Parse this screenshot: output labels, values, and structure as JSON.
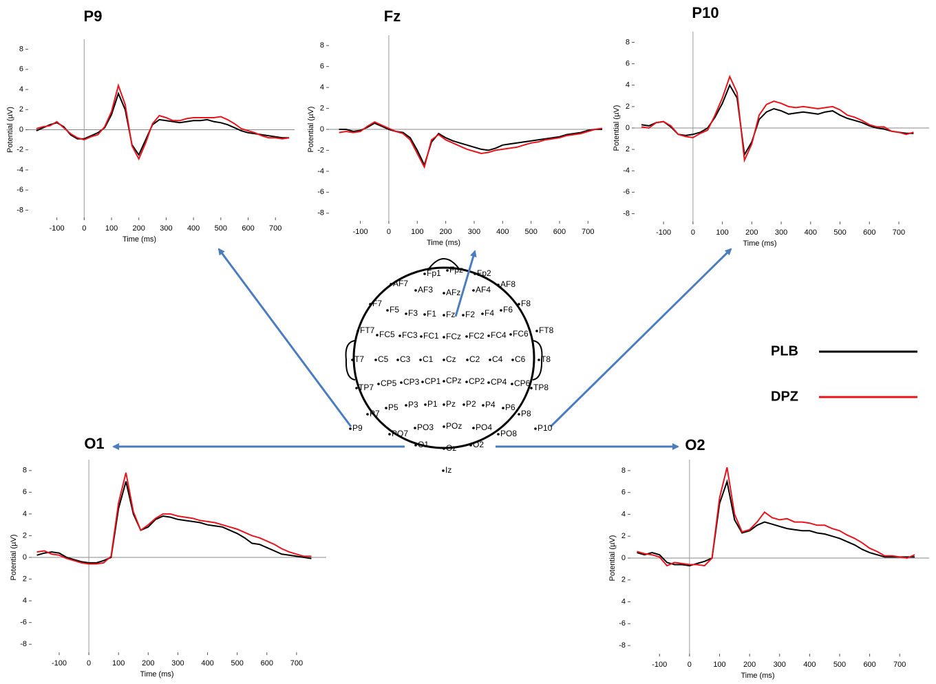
{
  "chart_data": [
    {
      "type": "line",
      "title": "P9",
      "x_label": "Time (ms)",
      "y_label": "Potential (µV)",
      "xlim": [
        -215,
        770
      ],
      "ylim": [
        -9,
        9
      ],
      "xticks": [
        -100,
        0,
        100,
        200,
        300,
        400,
        500,
        600,
        700
      ],
      "yticks": [
        8,
        6,
        4,
        2,
        0,
        -2,
        -4,
        -6,
        -8
      ],
      "x": [
        -175,
        -150,
        -125,
        -100,
        -75,
        -50,
        -25,
        0,
        25,
        50,
        75,
        100,
        125,
        150,
        175,
        200,
        225,
        250,
        275,
        300,
        325,
        350,
        375,
        400,
        425,
        450,
        475,
        500,
        525,
        550,
        575,
        600,
        625,
        650,
        675,
        700,
        725,
        750
      ],
      "series": [
        {
          "name": "PLB",
          "color": "#000000",
          "values": [
            -0.1,
            0.2,
            0.5,
            0.7,
            0.3,
            -0.5,
            -0.9,
            -0.9,
            -0.6,
            -0.3,
            0.2,
            1.5,
            3.6,
            2.0,
            -1.5,
            -2.5,
            -1.0,
            0.5,
            1.0,
            0.9,
            0.8,
            0.7,
            0.8,
            0.9,
            0.9,
            1.0,
            0.8,
            0.7,
            0.5,
            0.2,
            -0.1,
            -0.3,
            -0.4,
            -0.5,
            -0.6,
            -0.7,
            -0.8,
            -0.8
          ]
        },
        {
          "name": "DPZ",
          "color": "#e8141c",
          "values": [
            0.1,
            0.3,
            0.4,
            0.8,
            0.2,
            -0.4,
            -0.8,
            -1.0,
            -0.7,
            -0.5,
            0.3,
            1.8,
            4.4,
            2.5,
            -1.6,
            -2.9,
            -1.3,
            0.6,
            1.4,
            1.2,
            0.9,
            0.9,
            1.1,
            1.2,
            1.2,
            1.2,
            1.2,
            1.3,
            1.0,
            0.6,
            0.1,
            -0.1,
            -0.3,
            -0.6,
            -0.8,
            -0.8,
            -0.9,
            -0.8
          ]
        }
      ]
    },
    {
      "type": "line",
      "title": "Fz",
      "x_label": "Time (ms)",
      "y_label": "Potential (µV)",
      "xlim": [
        -220,
        750
      ],
      "ylim": [
        -9,
        9
      ],
      "xticks": [
        -100,
        0,
        100,
        200,
        300,
        400,
        500,
        600,
        700
      ],
      "yticks": [
        8,
        6,
        4,
        2,
        0,
        -2,
        -4,
        -6,
        -8
      ],
      "x": [
        -175,
        -150,
        -125,
        -100,
        -75,
        -50,
        -25,
        0,
        25,
        50,
        75,
        100,
        125,
        150,
        175,
        200,
        225,
        250,
        275,
        300,
        325,
        350,
        375,
        400,
        425,
        450,
        475,
        500,
        525,
        550,
        575,
        600,
        625,
        650,
        675,
        700,
        725,
        750
      ],
      "series": [
        {
          "name": "PLB",
          "color": "#000000",
          "values": [
            0.0,
            0.0,
            -0.2,
            -0.1,
            0.2,
            0.6,
            0.3,
            0.0,
            -0.2,
            -0.3,
            -0.8,
            -2.0,
            -3.4,
            -1.2,
            -0.4,
            -0.8,
            -1.1,
            -1.3,
            -1.5,
            -1.7,
            -1.9,
            -2.0,
            -1.8,
            -1.5,
            -1.4,
            -1.3,
            -1.2,
            -1.1,
            -1.0,
            -0.9,
            -0.8,
            -0.7,
            -0.5,
            -0.4,
            -0.3,
            -0.1,
            0.0,
            0.0
          ]
        },
        {
          "name": "DPZ",
          "color": "#e8141c",
          "values": [
            -0.3,
            -0.2,
            -0.3,
            -0.2,
            0.3,
            0.7,
            0.4,
            0.1,
            -0.2,
            -0.4,
            -1.0,
            -2.3,
            -3.6,
            -1.0,
            -0.5,
            -1.0,
            -1.3,
            -1.6,
            -1.9,
            -2.1,
            -2.3,
            -2.2,
            -2.0,
            -1.9,
            -1.8,
            -1.7,
            -1.5,
            -1.3,
            -1.2,
            -1.0,
            -0.9,
            -0.8,
            -0.6,
            -0.5,
            -0.4,
            -0.2,
            0.0,
            0.1
          ]
        }
      ]
    },
    {
      "type": "line",
      "title": "P10",
      "x_label": "Time (ms)",
      "y_label": "Potential (µV)",
      "xlim": [
        -208,
        803
      ],
      "ylim": [
        -9,
        9
      ],
      "xticks": [
        -100,
        0,
        100,
        200,
        300,
        400,
        500,
        600,
        700
      ],
      "yticks": [
        8,
        6,
        4,
        2,
        0,
        {
          "value": -2,
          "label": "2"
        },
        -4,
        -6,
        -8
      ],
      "x": [
        -175,
        -150,
        -125,
        -100,
        -75,
        -50,
        -25,
        0,
        25,
        50,
        75,
        100,
        125,
        150,
        175,
        200,
        225,
        250,
        275,
        300,
        325,
        350,
        375,
        400,
        425,
        450,
        475,
        500,
        525,
        550,
        575,
        600,
        625,
        650,
        675,
        700,
        725,
        750
      ],
      "series": [
        {
          "name": "PLB",
          "color": "#000000",
          "values": [
            0.3,
            0.2,
            0.5,
            0.6,
            0.1,
            -0.6,
            -0.7,
            -0.6,
            -0.4,
            0.0,
            1.0,
            2.3,
            4.0,
            2.8,
            -2.5,
            -1.3,
            0.8,
            1.5,
            1.8,
            1.6,
            1.3,
            1.4,
            1.5,
            1.4,
            1.3,
            1.5,
            1.6,
            1.2,
            0.9,
            0.7,
            0.5,
            0.2,
            0.0,
            -0.1,
            -0.3,
            -0.4,
            -0.5,
            -0.5
          ]
        },
        {
          "name": "DPZ",
          "color": "#e8141c",
          "values": [
            0.1,
            0.0,
            0.5,
            0.6,
            0.2,
            -0.6,
            -0.8,
            -0.9,
            -0.5,
            -0.2,
            1.2,
            2.8,
            4.8,
            3.3,
            -3.0,
            -1.5,
            1.2,
            2.2,
            2.5,
            2.3,
            2.0,
            1.9,
            2.0,
            1.9,
            1.8,
            1.9,
            2.0,
            1.7,
            1.2,
            1.0,
            0.7,
            0.3,
            0.1,
            0.1,
            -0.3,
            -0.4,
            -0.6,
            -0.4
          ]
        }
      ]
    },
    {
      "type": "line",
      "title": "O1",
      "x_label": "Time (ms)",
      "y_label": "Potential (µV)",
      "xlim": [
        -202,
        800
      ],
      "ylim": [
        -9,
        9
      ],
      "xticks": [
        -100,
        0,
        100,
        200,
        300,
        400,
        500,
        600,
        700
      ],
      "yticks": [
        8,
        6,
        4,
        2,
        0,
        {
          "value": -2,
          "label": "2"
        },
        {
          "value": -4,
          "label": "4"
        },
        -6,
        -8
      ],
      "x": [
        -175,
        -150,
        -125,
        -100,
        -75,
        -50,
        -25,
        0,
        25,
        50,
        75,
        100,
        125,
        150,
        175,
        200,
        225,
        250,
        275,
        300,
        325,
        350,
        375,
        400,
        425,
        450,
        475,
        500,
        525,
        550,
        575,
        600,
        625,
        650,
        675,
        700,
        725,
        750
      ],
      "series": [
        {
          "name": "PLB",
          "color": "#000000",
          "values": [
            0.2,
            0.4,
            0.5,
            0.4,
            0.0,
            -0.2,
            -0.4,
            -0.5,
            -0.5,
            -0.3,
            0.0,
            4.5,
            7.0,
            4.0,
            2.5,
            2.8,
            3.5,
            3.8,
            3.7,
            3.5,
            3.4,
            3.3,
            3.2,
            3.0,
            2.9,
            2.8,
            2.5,
            2.2,
            1.8,
            1.3,
            1.2,
            0.9,
            0.6,
            0.3,
            0.2,
            0.1,
            0.0,
            -0.1
          ]
        },
        {
          "name": "DPZ",
          "color": "#e8141c",
          "values": [
            0.5,
            0.6,
            0.3,
            0.2,
            -0.1,
            -0.3,
            -0.5,
            -0.6,
            -0.6,
            -0.5,
            0.1,
            5.0,
            7.8,
            4.2,
            2.5,
            3.0,
            3.6,
            4.0,
            4.0,
            3.8,
            3.7,
            3.6,
            3.4,
            3.3,
            3.2,
            3.0,
            2.8,
            2.6,
            2.3,
            2.0,
            1.8,
            1.5,
            1.2,
            0.8,
            0.5,
            0.3,
            0.1,
            0.1
          ]
        }
      ]
    },
    {
      "type": "line",
      "title": "O2",
      "x_label": "Time (ms)",
      "y_label": "Potential (µV)",
      "xlim": [
        -206,
        798
      ],
      "ylim": [
        -9,
        9
      ],
      "xticks": [
        -100,
        0,
        100,
        200,
        300,
        400,
        500,
        600,
        700
      ],
      "yticks": [
        8,
        6,
        4,
        2,
        0,
        {
          "value": -2,
          "label": "2"
        },
        {
          "value": -4,
          "label": "4"
        },
        -6,
        -8
      ],
      "x": [
        -175,
        -150,
        -125,
        -100,
        -75,
        -50,
        -25,
        0,
        25,
        50,
        75,
        100,
        125,
        150,
        175,
        200,
        225,
        250,
        275,
        300,
        325,
        350,
        375,
        400,
        425,
        450,
        475,
        500,
        525,
        550,
        575,
        600,
        625,
        650,
        675,
        700,
        725,
        750
      ],
      "series": [
        {
          "name": "PLB",
          "color": "#000000",
          "values": [
            0.5,
            0.3,
            0.5,
            0.3,
            -0.4,
            -0.6,
            -0.6,
            -0.7,
            -0.5,
            -0.3,
            0.0,
            5.0,
            7.0,
            3.5,
            2.3,
            2.5,
            3.0,
            3.3,
            3.1,
            2.9,
            2.7,
            2.6,
            2.5,
            2.5,
            2.3,
            2.2,
            2.0,
            1.8,
            1.5,
            1.2,
            0.8,
            0.5,
            0.3,
            0.1,
            0.1,
            0.1,
            0.1,
            0.1
          ]
        },
        {
          "name": "DPZ",
          "color": "#e8141c",
          "values": [
            0.6,
            0.4,
            0.3,
            0.1,
            -0.7,
            -0.4,
            -0.5,
            -0.6,
            -0.6,
            -0.7,
            0.0,
            5.5,
            8.3,
            4.0,
            2.4,
            2.6,
            3.3,
            4.2,
            3.7,
            3.5,
            3.6,
            3.3,
            3.3,
            3.2,
            3.0,
            3.0,
            2.7,
            2.5,
            2.1,
            1.8,
            1.4,
            0.9,
            0.6,
            0.2,
            0.2,
            0.1,
            0.0,
            0.3
          ]
        }
      ]
    }
  ],
  "head_map": {
    "electrodes": [
      "Fp1",
      "Fpz",
      "Fp2",
      "AF7",
      "AF3",
      "AFz",
      "AF4",
      "AF8",
      "F7",
      "F5",
      "F3",
      "F1",
      "Fz",
      "F2",
      "F4",
      "F6",
      "F8",
      "FT7",
      "FC5",
      "FC3",
      "FC1",
      "FCz",
      "FC2",
      "FC4",
      "FC6",
      "FT8",
      "T7",
      "C5",
      "C3",
      "C1",
      "Cz",
      "C2",
      "C4",
      "C6",
      "T8",
      "TP7",
      "CP5",
      "CP3",
      "CP1",
      "CPz",
      "CP2",
      "CP4",
      "CP6",
      "TP8",
      "P7",
      "P5",
      "P3",
      "P1",
      "Pz",
      "P2",
      "P4",
      "P6",
      "P8",
      "P9",
      "PO7",
      "PO3",
      "POz",
      "PO4",
      "PO8",
      "P10",
      "O1",
      "Oz",
      "O2",
      "Iz"
    ]
  }
}
